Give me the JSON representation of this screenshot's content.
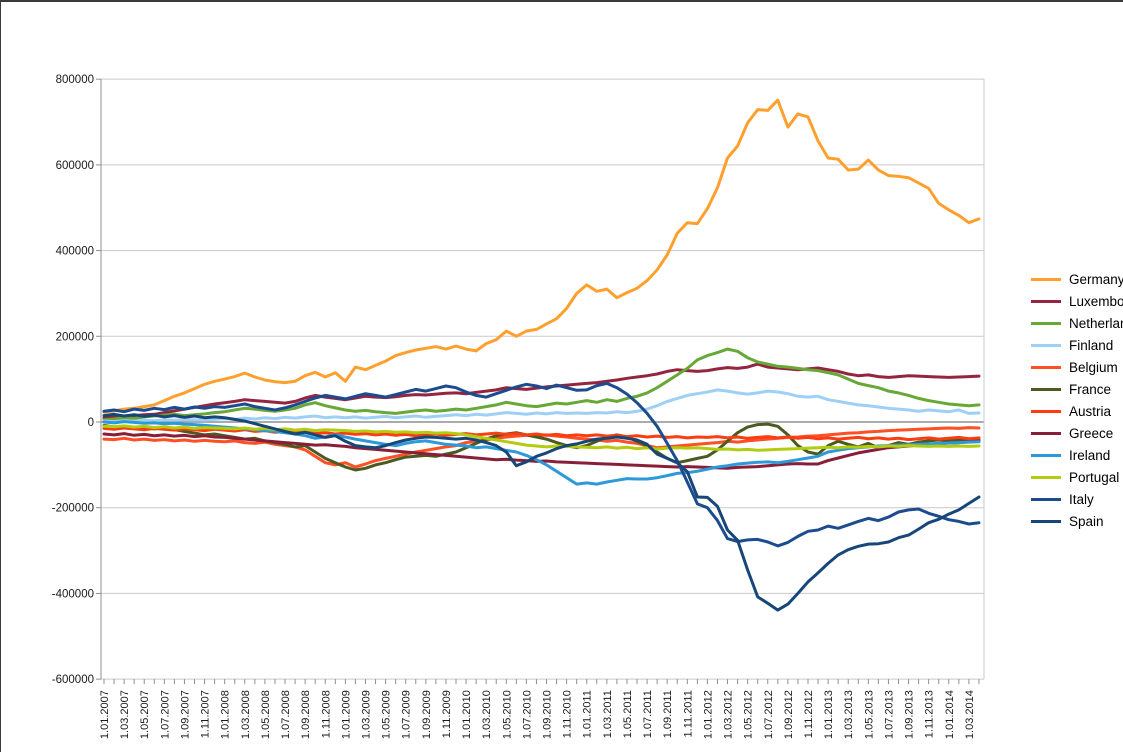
{
  "chart_data": {
    "type": "line",
    "title": "",
    "grid": "horizontal",
    "legend_position": "right",
    "value_scale": 1000,
    "x_points_count": 88,
    "x_tick_every_months": 2,
    "x_tick_labels": [
      "1.01.2007",
      "1.03.2007",
      "1.05.2007",
      "1.07.2007",
      "1.09.2007",
      "1.11.2007",
      "1.01.2008",
      "1.03.2008",
      "1.05.2008",
      "1.07.2008",
      "1.09.2008",
      "1.11.2008",
      "1.01.2009",
      "1.03.2009",
      "1.05.2009",
      "1.07.2009",
      "1.09.2009",
      "1.11.2009",
      "1.01.2010",
      "1.03.2010",
      "1.05.2010",
      "1.07.2010",
      "1.09.2010",
      "1.11.2010",
      "1.01.2011",
      "1.03.2011",
      "1.05.2011",
      "1.07.2011",
      "1.09.2011",
      "1.11.2011",
      "1.01.2012",
      "1.03.2012",
      "1.05.2012",
      "1.07.2012",
      "1.09.2012",
      "1.11.2012",
      "1.01.2013",
      "1.03.2013",
      "1.05.2013",
      "1.07.2013",
      "1.09.2013",
      "1.11.2013",
      "1.01.2014",
      "1.03.2014"
    ],
    "y_axis": {
      "min": -600000,
      "max": 800000,
      "step": 200000,
      "tick_labels": [
        "800000",
        "600000",
        "400000",
        "200000",
        "0",
        "-200000",
        "-400000",
        "-600000"
      ]
    },
    "series": [
      {
        "name": "Germany",
        "color": "#FFA02E",
        "values": [
          23,
          26,
          30,
          32,
          36,
          40,
          50,
          60,
          68,
          78,
          88,
          95,
          100,
          106,
          114,
          105,
          98,
          94,
          92,
          95,
          108,
          116,
          105,
          115,
          95,
          128,
          122,
          132,
          142,
          155,
          162,
          168,
          172,
          176,
          170,
          177,
          170,
          166,
          183,
          192,
          212,
          200,
          212,
          216,
          229,
          241,
          265,
          300,
          320,
          305,
          310,
          290,
          302,
          312,
          330,
          355,
          390,
          440,
          465,
          463,
          498,
          547,
          616,
          644,
          698,
          729,
          727,
          751,
          688,
          719,
          712,
          656,
          616,
          613,
          588,
          590,
          611,
          588,
          575,
          573,
          570,
          558,
          545,
          510,
          495,
          482,
          465,
          474
        ]
      },
      {
        "name": "Luxembourg",
        "color": "#93253F",
        "values": [
          10,
          12,
          14,
          15,
          17,
          18,
          22,
          26,
          30,
          34,
          38,
          42,
          45,
          48,
          52,
          50,
          48,
          46,
          44,
          48,
          56,
          62,
          58,
          55,
          52,
          56,
          60,
          58,
          57,
          59,
          62,
          64,
          63,
          65,
          67,
          68,
          66,
          69,
          72,
          75,
          80,
          78,
          76,
          79,
          82,
          84,
          86,
          88,
          90,
          92,
          95,
          98,
          102,
          105,
          108,
          112,
          118,
          122,
          120,
          118,
          120,
          124,
          127,
          125,
          128,
          135,
          128,
          126,
          124,
          122,
          124,
          126,
          122,
          118,
          112,
          108,
          110,
          106,
          104,
          106,
          108,
          107,
          106,
          105,
          104,
          105,
          106,
          107
        ]
      },
      {
        "name": "Netherlands",
        "color": "#67A837",
        "values": [
          5,
          7,
          10,
          8,
          12,
          14,
          16,
          18,
          15,
          17,
          19,
          22,
          24,
          28,
          32,
          30,
          27,
          25,
          28,
          32,
          40,
          45,
          38,
          33,
          28,
          25,
          27,
          24,
          22,
          20,
          23,
          26,
          28,
          25,
          27,
          30,
          28,
          32,
          36,
          40,
          46,
          42,
          38,
          36,
          40,
          44,
          42,
          46,
          50,
          46,
          52,
          48,
          55,
          60,
          68,
          80,
          95,
          110,
          125,
          145,
          155,
          162,
          170,
          165,
          150,
          140,
          135,
          130,
          128,
          125,
          122,
          120,
          115,
          110,
          100,
          90,
          85,
          80,
          72,
          68,
          62,
          55,
          50,
          46,
          42,
          40,
          38,
          40
        ]
      },
      {
        "name": "Finland",
        "color": "#9ECFF5",
        "values": [
          2,
          1,
          3,
          2,
          4,
          3,
          5,
          4,
          6,
          5,
          4,
          6,
          8,
          6,
          9,
          7,
          10,
          8,
          11,
          9,
          12,
          14,
          10,
          12,
          10,
          12,
          9,
          11,
          13,
          10,
          12,
          14,
          11,
          13,
          15,
          17,
          15,
          18,
          16,
          19,
          22,
          20,
          18,
          21,
          19,
          22,
          20,
          21,
          20,
          22,
          21,
          24,
          22,
          25,
          30,
          38,
          48,
          55,
          62,
          66,
          70,
          75,
          72,
          68,
          65,
          68,
          72,
          70,
          66,
          60,
          58,
          60,
          52,
          48,
          44,
          40,
          38,
          35,
          32,
          30,
          28,
          25,
          28,
          26,
          24,
          28,
          20,
          21
        ]
      },
      {
        "name": "Belgium",
        "color": "#FF4F24",
        "values": [
          -40,
          -41,
          -38,
          -42,
          -40,
          -43,
          -41,
          -44,
          -42,
          -45,
          -43,
          -45,
          -46,
          -44,
          -48,
          -50,
          -47,
          -52,
          -55,
          -58,
          -65,
          -80,
          -95,
          -100,
          -95,
          -105,
          -98,
          -90,
          -85,
          -80,
          -75,
          -70,
          -66,
          -62,
          -58,
          -55,
          -48,
          -45,
          -42,
          -38,
          -35,
          -33,
          -31,
          -33,
          -30,
          -33,
          -35,
          -38,
          -40,
          -42,
          -45,
          -43,
          -47,
          -50,
          -55,
          -60,
          -58,
          -56,
          -54,
          -52,
          -50,
          -48,
          -45,
          -47,
          -44,
          -42,
          -40,
          -38,
          -36,
          -35,
          -33,
          -32,
          -30,
          -28,
          -26,
          -25,
          -23,
          -22,
          -20,
          -19,
          -18,
          -17,
          -16,
          -15,
          -14,
          -15,
          -13,
          -14
        ]
      },
      {
        "name": "France",
        "color": "#4A5A20",
        "values": [
          -8,
          -12,
          -10,
          -14,
          -12,
          -16,
          -14,
          -18,
          -22,
          -26,
          -30,
          -28,
          -32,
          -36,
          -40,
          -38,
          -44,
          -48,
          -52,
          -58,
          -55,
          -70,
          -85,
          -95,
          -105,
          -112,
          -108,
          -100,
          -95,
          -88,
          -82,
          -80,
          -78,
          -80,
          -75,
          -70,
          -60,
          -50,
          -40,
          -32,
          -28,
          -25,
          -30,
          -35,
          -40,
          -48,
          -55,
          -60,
          -55,
          -45,
          -35,
          -30,
          -35,
          -45,
          -55,
          -70,
          -85,
          -95,
          -90,
          -85,
          -80,
          -65,
          -45,
          -25,
          -12,
          -6,
          -5,
          -10,
          -30,
          -55,
          -70,
          -75,
          -55,
          -45,
          -52,
          -58,
          -50,
          -60,
          -55,
          -48,
          -52,
          -47,
          -44,
          -42,
          -44,
          -42,
          -40,
          -42
        ]
      },
      {
        "name": "Austria",
        "color": "#FB3D11",
        "values": [
          -15,
          -17,
          -14,
          -16,
          -18,
          -15,
          -17,
          -19,
          -16,
          -18,
          -20,
          -17,
          -19,
          -21,
          -18,
          -22,
          -20,
          -24,
          -22,
          -25,
          -23,
          -27,
          -25,
          -28,
          -26,
          -29,
          -27,
          -30,
          -28,
          -31,
          -29,
          -32,
          -30,
          -28,
          -31,
          -29,
          -27,
          -30,
          -28,
          -26,
          -29,
          -27,
          -30,
          -28,
          -31,
          -29,
          -32,
          -30,
          -32,
          -30,
          -33,
          -31,
          -34,
          -32,
          -35,
          -33,
          -36,
          -34,
          -37,
          -35,
          -36,
          -34,
          -37,
          -35,
          -38,
          -36,
          -34,
          -37,
          -35,
          -38,
          -36,
          -39,
          -37,
          -40,
          -38,
          -36,
          -39,
          -37,
          -40,
          -38,
          -41,
          -39,
          -37,
          -40,
          -38,
          -36,
          -39,
          -37
        ]
      },
      {
        "name": "Greece",
        "color": "#881F38",
        "values": [
          -28,
          -30,
          -27,
          -31,
          -29,
          -32,
          -30,
          -33,
          -31,
          -34,
          -32,
          -35,
          -36,
          -38,
          -40,
          -42,
          -44,
          -46,
          -48,
          -50,
          -52,
          -54,
          -53,
          -55,
          -57,
          -60,
          -62,
          -64,
          -66,
          -68,
          -70,
          -72,
          -74,
          -76,
          -78,
          -80,
          -82,
          -84,
          -86,
          -88,
          -87,
          -89,
          -90,
          -92,
          -91,
          -93,
          -94,
          -95,
          -96,
          -97,
          -98,
          -99,
          -100,
          -101,
          -102,
          -103,
          -104,
          -105,
          -104,
          -105,
          -106,
          -107,
          -108,
          -106,
          -105,
          -104,
          -102,
          -100,
          -98,
          -97,
          -98,
          -98,
          -90,
          -84,
          -78,
          -72,
          -68,
          -64,
          -60,
          -58,
          -56,
          -54,
          -52,
          -51,
          -49,
          -48,
          -46,
          -45
        ]
      },
      {
        "name": "Ireland",
        "color": "#2E99D9",
        "values": [
          0,
          -2,
          1,
          -1,
          -3,
          -2,
          -4,
          -3,
          -5,
          -6,
          -8,
          -10,
          -12,
          -14,
          -16,
          -18,
          -20,
          -22,
          -25,
          -28,
          -32,
          -38,
          -35,
          -30,
          -35,
          -40,
          -44,
          -48,
          -52,
          -55,
          -50,
          -46,
          -44,
          -48,
          -52,
          -54,
          -56,
          -60,
          -58,
          -62,
          -66,
          -70,
          -78,
          -88,
          -100,
          -115,
          -130,
          -145,
          -142,
          -145,
          -140,
          -136,
          -132,
          -133,
          -133,
          -130,
          -125,
          -120,
          -118,
          -115,
          -110,
          -105,
          -102,
          -98,
          -96,
          -94,
          -93,
          -95,
          -92,
          -88,
          -84,
          -80,
          -70,
          -66,
          -62,
          -60,
          -58,
          -56,
          -55,
          -54,
          -53,
          -52,
          -51,
          -50,
          -49,
          -48,
          -47,
          -46
        ]
      },
      {
        "name": "Portugal",
        "color": "#B3CC0F",
        "values": [
          -10,
          -11,
          -9,
          -12,
          -10,
          -13,
          -11,
          -14,
          -12,
          -15,
          -13,
          -14,
          -15,
          -16,
          -14,
          -17,
          -15,
          -18,
          -16,
          -19,
          -17,
          -20,
          -18,
          -19,
          -20,
          -22,
          -21,
          -23,
          -22,
          -24,
          -23,
          -25,
          -24,
          -26,
          -25,
          -27,
          -30,
          -34,
          -38,
          -42,
          -46,
          -50,
          -54,
          -56,
          -58,
          -56,
          -57,
          -58,
          -59,
          -60,
          -58,
          -61,
          -59,
          -62,
          -60,
          -63,
          -61,
          -60,
          -61,
          -60,
          -62,
          -64,
          -63,
          -65,
          -64,
          -66,
          -65,
          -64,
          -63,
          -62,
          -61,
          -60,
          -59,
          -60,
          -58,
          -59,
          -57,
          -58,
          -56,
          -57,
          -55,
          -56,
          -57,
          -56,
          -57,
          -56,
          -57,
          -56
        ]
      },
      {
        "name": "Italy",
        "color": "#1C4C8F",
        "values": [
          25,
          28,
          24,
          30,
          27,
          32,
          29,
          34,
          30,
          35,
          32,
          36,
          34,
          38,
          42,
          36,
          32,
          28,
          33,
          40,
          48,
          56,
          62,
          58,
          54,
          60,
          66,
          62,
          58,
          64,
          70,
          76,
          72,
          78,
          84,
          80,
          70,
          62,
          58,
          66,
          74,
          82,
          88,
          84,
          78,
          86,
          80,
          74,
          75,
          85,
          90,
          80,
          65,
          45,
          20,
          -10,
          -50,
          -90,
          -140,
          -191,
          -200,
          -230,
          -272,
          -279,
          -275,
          -274,
          -280,
          -289,
          -281,
          -267,
          -255,
          -252,
          -243,
          -248,
          -240,
          -232,
          -225,
          -230,
          -222,
          -210,
          -205,
          -203,
          -213,
          -220,
          -228,
          -232,
          -238,
          -235
        ]
      },
      {
        "name": "Spain",
        "color": "#174678",
        "values": [
          15,
          18,
          14,
          17,
          13,
          16,
          12,
          15,
          11,
          14,
          10,
          12,
          10,
          6,
          2,
          -4,
          -10,
          -16,
          -22,
          -28,
          -24,
          -30,
          -36,
          -32,
          -45,
          -55,
          -58,
          -60,
          -55,
          -48,
          -42,
          -38,
          -35,
          -36,
          -38,
          -40,
          -38,
          -42,
          -48,
          -55,
          -70,
          -102,
          -93,
          -80,
          -72,
          -62,
          -55,
          -51,
          -45,
          -40,
          -38,
          -35,
          -38,
          -42,
          -52,
          -75,
          -85,
          -95,
          -116,
          -175,
          -176,
          -197,
          -252,
          -276,
          -345,
          -408,
          -423,
          -439,
          -425,
          -400,
          -373,
          -352,
          -330,
          -310,
          -298,
          -290,
          -285,
          -284,
          -280,
          -270,
          -264,
          -250,
          -235,
          -227,
          -215,
          -205,
          -190,
          -175
        ]
      }
    ]
  }
}
